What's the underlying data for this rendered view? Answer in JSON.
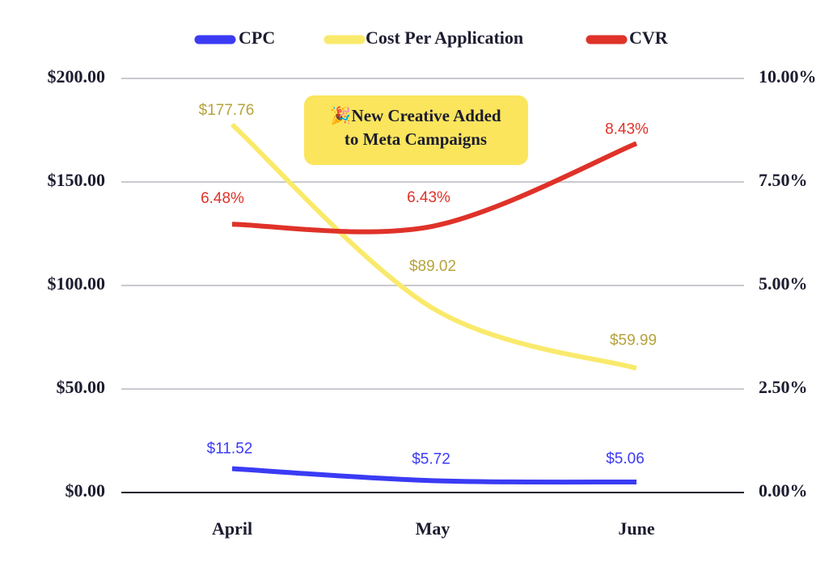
{
  "chart_data": {
    "type": "line",
    "categories": [
      "April",
      "May",
      "June"
    ],
    "series": [
      {
        "name": "CPC",
        "color": "#3b3bf4",
        "label_color": "#3b3bf4",
        "values": [
          11.52,
          5.72,
          5.06
        ],
        "value_labels": [
          "$11.52",
          "$5.72",
          "$5.06"
        ]
      },
      {
        "name": "Cost Per Application",
        "color": "#f9ea6c",
        "label_color": "#b5a33c",
        "values": [
          177.76,
          89.02,
          59.99
        ],
        "value_labels": [
          "$177.76",
          "$89.02",
          "$59.99"
        ]
      },
      {
        "name": "CVR",
        "color": "#df3229",
        "label_color": "#df3229",
        "axis": "y2",
        "values": [
          6.48,
          6.43,
          8.43
        ],
        "value_labels": [
          "6.48%",
          "6.43%",
          "8.43%"
        ]
      }
    ],
    "ylim": [
      0,
      200
    ],
    "yticks": [
      {
        "value": 0,
        "label": "$0.00"
      },
      {
        "value": 50,
        "label": "$50.00"
      },
      {
        "value": 100,
        "label": "$100.00"
      },
      {
        "value": 150,
        "label": "$150.00"
      },
      {
        "value": 200,
        "label": "$200.00"
      }
    ],
    "y2lim": [
      0,
      10
    ],
    "y2ticks": [
      {
        "value": 0,
        "label": "0.00%"
      },
      {
        "value": 2.5,
        "label": "2.50%"
      },
      {
        "value": 5,
        "label": "5.00%"
      },
      {
        "value": 7.5,
        "label": "7.50%"
      },
      {
        "value": 10,
        "label": "10.00%"
      }
    ],
    "grid": true,
    "legend": "top",
    "annotation": [
      "🎉New Creative Added",
      "to Meta Campaigns"
    ]
  }
}
